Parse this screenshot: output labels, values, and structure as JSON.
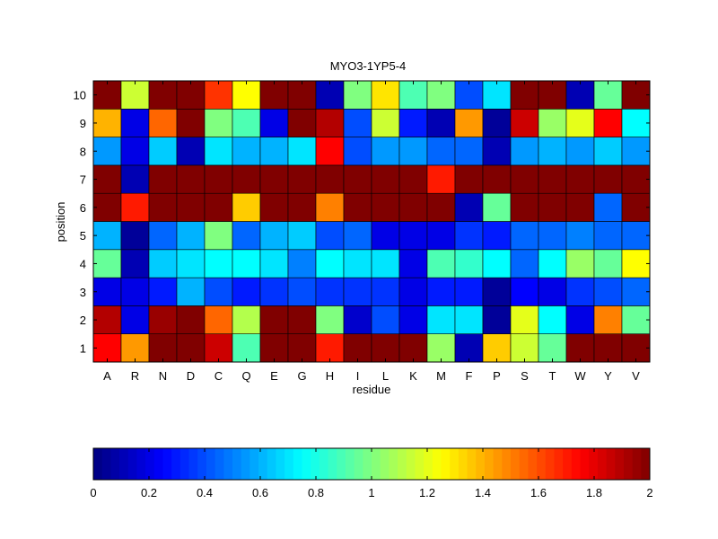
{
  "chart_data": {
    "type": "heatmap",
    "title": "MYO3-1YP5-4",
    "xlabel": "residue",
    "ylabel": "position",
    "x_categories": [
      "A",
      "R",
      "N",
      "D",
      "C",
      "Q",
      "E",
      "G",
      "H",
      "I",
      "L",
      "K",
      "M",
      "F",
      "P",
      "S",
      "T",
      "W",
      "Y",
      "V"
    ],
    "y_categories": [
      "1",
      "2",
      "3",
      "4",
      "5",
      "6",
      "7",
      "8",
      "9",
      "10"
    ],
    "values": [
      [
        1.75,
        1.45,
        2.0,
        2.0,
        1.85,
        0.9,
        2.0,
        2.0,
        1.7,
        2.0,
        2.0,
        2.0,
        1.05,
        0.1,
        1.35,
        1.15,
        0.95,
        2.0,
        2.0,
        2.0
      ],
      [
        1.9,
        0.2,
        1.95,
        2.0,
        1.55,
        1.1,
        2.0,
        2.0,
        1.0,
        0.15,
        0.4,
        0.2,
        0.7,
        0.7,
        0.05,
        1.2,
        0.75,
        0.2,
        1.5,
        0.95
      ],
      [
        0.2,
        0.2,
        0.3,
        0.6,
        0.4,
        0.3,
        0.35,
        0.4,
        0.35,
        0.35,
        0.35,
        0.2,
        0.3,
        0.3,
        0.05,
        0.25,
        0.2,
        0.35,
        0.4,
        0.45
      ],
      [
        0.95,
        0.1,
        0.65,
        0.7,
        0.75,
        0.75,
        0.7,
        0.5,
        0.75,
        0.7,
        0.7,
        0.2,
        0.9,
        0.85,
        0.75,
        0.45,
        0.75,
        1.05,
        0.95,
        1.25
      ],
      [
        0.6,
        0.05,
        0.45,
        0.6,
        1.0,
        0.45,
        0.6,
        0.65,
        0.4,
        0.45,
        0.2,
        0.2,
        0.2,
        0.35,
        0.3,
        0.45,
        0.45,
        0.5,
        0.45,
        0.45
      ],
      [
        2.0,
        1.7,
        2.0,
        2.0,
        2.0,
        1.35,
        2.0,
        2.0,
        1.5,
        2.0,
        2.0,
        2.0,
        2.0,
        0.1,
        0.95,
        2.0,
        2.0,
        2.0,
        0.45,
        2.0
      ],
      [
        2.0,
        0.1,
        2.0,
        2.0,
        2.0,
        2.0,
        2.0,
        2.0,
        2.0,
        2.0,
        2.0,
        2.0,
        1.7,
        2.0,
        2.0,
        2.0,
        2.0,
        2.0,
        2.0,
        2.0
      ],
      [
        0.55,
        0.2,
        0.65,
        0.1,
        0.7,
        0.6,
        0.6,
        0.7,
        1.75,
        0.4,
        0.55,
        0.55,
        0.45,
        0.45,
        0.1,
        0.55,
        0.6,
        0.55,
        0.65,
        0.55
      ],
      [
        1.4,
        0.2,
        1.55,
        2.0,
        1.0,
        0.9,
        0.2,
        2.0,
        1.9,
        0.4,
        1.15,
        0.3,
        0.1,
        1.45,
        0.05,
        1.85,
        1.05,
        1.2,
        1.75,
        0.75
      ],
      [
        2.0,
        1.15,
        2.0,
        2.0,
        1.65,
        1.25,
        2.0,
        2.0,
        0.1,
        1.0,
        1.3,
        0.9,
        1.0,
        0.4,
        0.7,
        2.0,
        2.0,
        0.1,
        0.95,
        2.0
      ]
    ],
    "colormap": "jet",
    "color_range": [
      0,
      2
    ],
    "colorbar": {
      "orientation": "horizontal",
      "placement": "bottom",
      "ticks": [
        "0",
        "0.2",
        "0.4",
        "0.6",
        "0.8",
        "1",
        "1.2",
        "1.4",
        "1.6",
        "1.8",
        "2"
      ]
    },
    "grid": true
  }
}
